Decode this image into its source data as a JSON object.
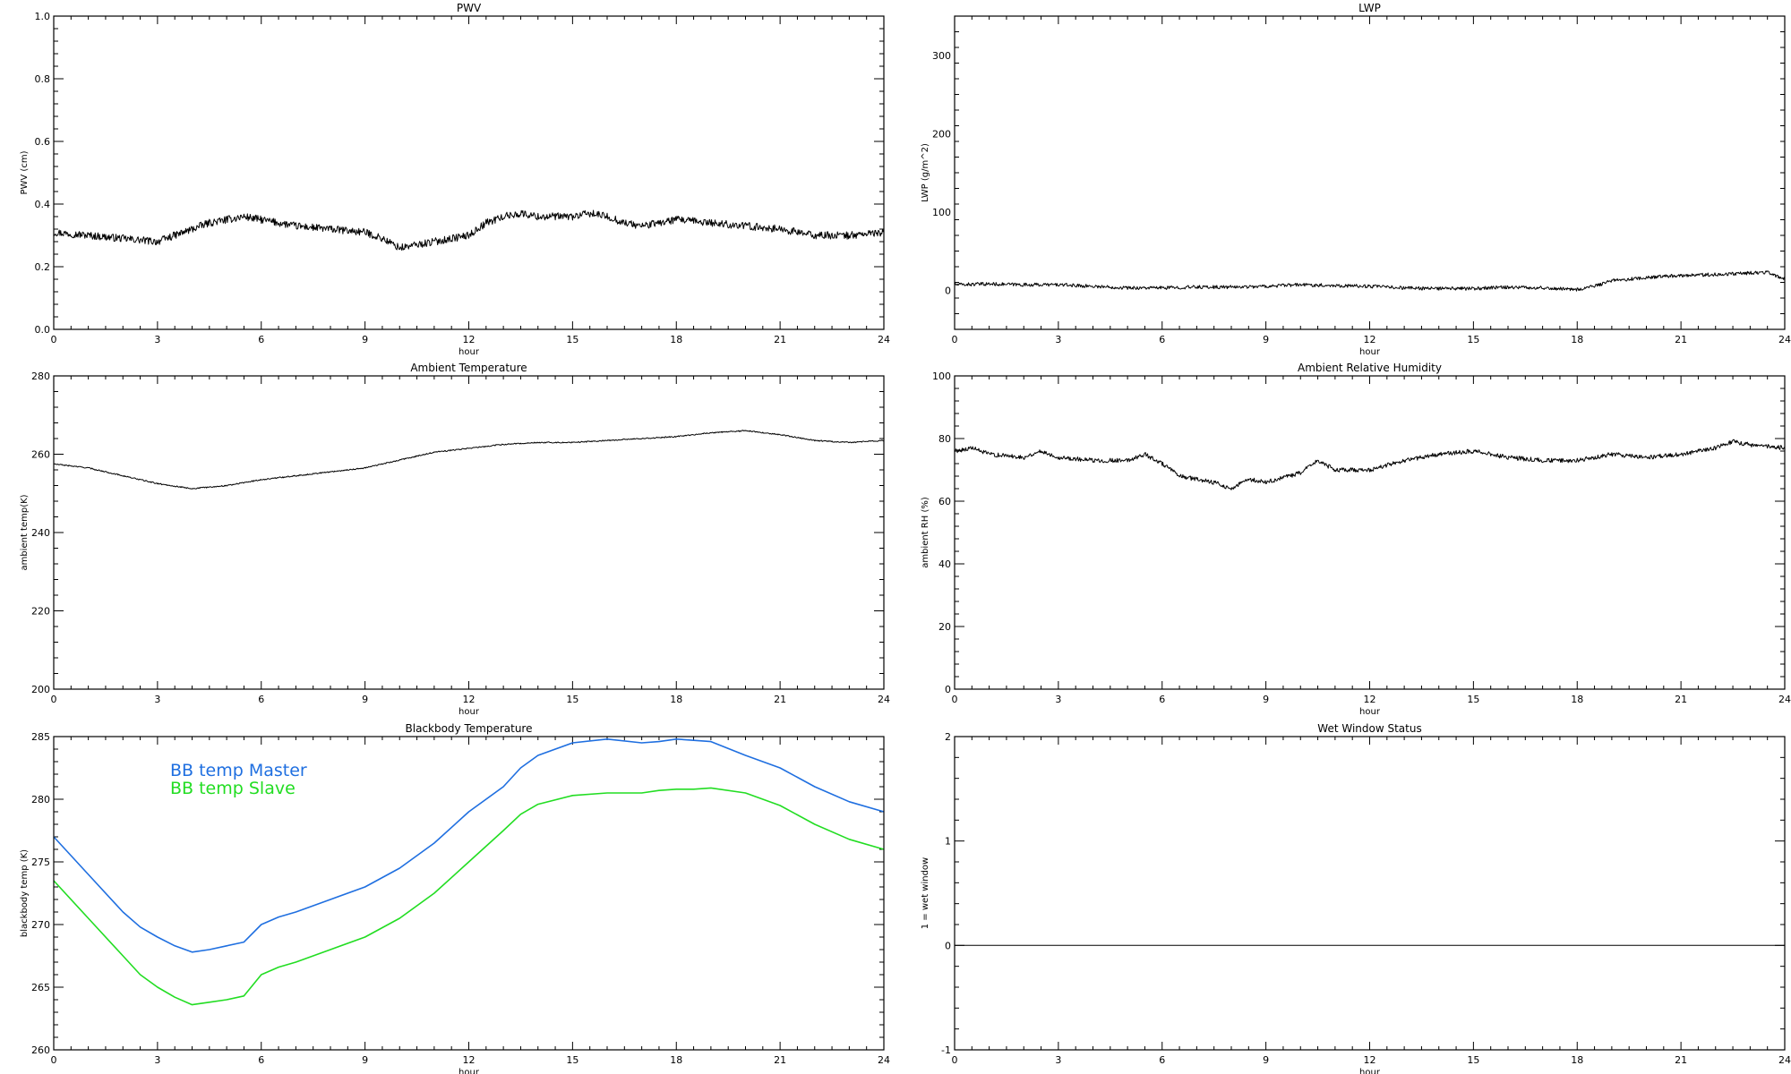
{
  "chart_data": [
    {
      "type": "line",
      "title": "PWV",
      "xlabel": "hour",
      "ylabel": "PWV (cm)",
      "xlim": [
        0,
        24
      ],
      "ylim": [
        0.0,
        1.0
      ],
      "xticks": [
        "0",
        "3",
        "6",
        "9",
        "12",
        "15",
        "18",
        "21",
        "24"
      ],
      "yticks": [
        "0.0",
        "0.2",
        "0.4",
        "0.6",
        "0.8",
        "1.0"
      ],
      "noise": 0.012,
      "series": [
        {
          "color": "#000000",
          "x": [
            0,
            1,
            2,
            3,
            3.5,
            4,
            4.5,
            5,
            5.5,
            6,
            7,
            8,
            9,
            9.5,
            10,
            11,
            12,
            12.5,
            13,
            13.5,
            14,
            15,
            15.5,
            16,
            16.5,
            17,
            18,
            19,
            20,
            21,
            22,
            23,
            24
          ],
          "y": [
            0.31,
            0.3,
            0.29,
            0.28,
            0.3,
            0.32,
            0.34,
            0.35,
            0.36,
            0.35,
            0.33,
            0.32,
            0.31,
            0.29,
            0.26,
            0.28,
            0.3,
            0.34,
            0.36,
            0.37,
            0.36,
            0.36,
            0.37,
            0.36,
            0.34,
            0.33,
            0.35,
            0.34,
            0.33,
            0.32,
            0.3,
            0.3,
            0.31
          ]
        }
      ]
    },
    {
      "type": "line",
      "title": "LWP",
      "xlabel": "hour",
      "ylabel": "LWP (g/m^2)",
      "xlim": [
        0,
        24
      ],
      "ylim": [
        -50,
        350
      ],
      "xticks": [
        "0",
        "3",
        "6",
        "9",
        "12",
        "15",
        "18",
        "21",
        "24"
      ],
      "yticks": [
        "0",
        "100",
        "200",
        "300"
      ],
      "noise": 2.2,
      "series": [
        {
          "color": "#000000",
          "x": [
            0,
            1,
            2,
            3,
            4,
            5,
            6,
            7,
            8,
            9,
            10,
            11,
            12,
            13,
            14,
            15,
            16,
            17,
            18,
            18.5,
            19,
            20,
            21,
            22,
            23,
            23.5,
            24
          ],
          "y": [
            7,
            8,
            7,
            7,
            5,
            3,
            3,
            4,
            4,
            5,
            7,
            6,
            5,
            3,
            2,
            2,
            4,
            3,
            1,
            5,
            12,
            16,
            19,
            20,
            22,
            23,
            14
          ]
        }
      ]
    },
    {
      "type": "line",
      "title": "Ambient Temperature",
      "xlabel": "hour",
      "ylabel": "ambient temp(K)",
      "xlim": [
        0,
        24
      ],
      "ylim": [
        200,
        280
      ],
      "xticks": [
        "0",
        "3",
        "6",
        "9",
        "12",
        "15",
        "18",
        "21",
        "24"
      ],
      "yticks": [
        "200",
        "220",
        "240",
        "260",
        "280"
      ],
      "noise": 0.15,
      "series": [
        {
          "color": "#000000",
          "x": [
            0,
            1,
            2,
            3,
            4,
            5,
            6,
            7,
            8,
            9,
            10,
            11,
            12,
            13,
            14,
            15,
            16,
            17,
            18,
            19,
            20,
            21,
            22,
            23,
            24
          ],
          "y": [
            257.5,
            256.5,
            254.5,
            252.5,
            251.2,
            252,
            253.5,
            254.5,
            255.5,
            256.5,
            258.5,
            260.5,
            261.5,
            262.5,
            263,
            263,
            263.5,
            264,
            264.5,
            265.5,
            266,
            265,
            263.5,
            263,
            263.5
          ]
        }
      ]
    },
    {
      "type": "line",
      "title": "Ambient Relative Humidity",
      "xlabel": "hour",
      "ylabel": "ambient RH (%)",
      "xlim": [
        0,
        24
      ],
      "ylim": [
        0,
        100
      ],
      "xticks": [
        "0",
        "3",
        "6",
        "9",
        "12",
        "15",
        "18",
        "21",
        "24"
      ],
      "yticks": [
        "0",
        "20",
        "40",
        "60",
        "80",
        "100"
      ],
      "noise": 0.7,
      "series": [
        {
          "color": "#000000",
          "x": [
            0,
            0.5,
            1,
            2,
            2.5,
            3,
            4,
            5,
            5.5,
            6,
            6.5,
            7,
            7.5,
            8,
            8.5,
            9,
            10,
            10.5,
            11,
            12,
            13,
            14,
            15,
            16,
            17,
            18,
            19,
            20,
            21,
            22,
            22.5,
            23,
            24
          ],
          "y": [
            76,
            77,
            75,
            74,
            76,
            74,
            73,
            73,
            75,
            72,
            68,
            67,
            66,
            64,
            67,
            66,
            69,
            73,
            70,
            70,
            73,
            75,
            76,
            74,
            73,
            73,
            75,
            74,
            75,
            77,
            79,
            78,
            77
          ]
        }
      ]
    },
    {
      "type": "line",
      "title": "Blackbody Temperature",
      "xlabel": "hour",
      "ylabel": "blackbody temp (K)",
      "xlim": [
        0,
        24
      ],
      "ylim": [
        260,
        285
      ],
      "xticks": [
        "0",
        "3",
        "6",
        "9",
        "12",
        "15",
        "18",
        "21",
        "24"
      ],
      "yticks": [
        "260",
        "265",
        "270",
        "275",
        "280",
        "285"
      ],
      "noise": 0,
      "legend": [
        {
          "label": "BB temp Master",
          "color": "#1f6fe0"
        },
        {
          "label": "BB temp Slave",
          "color": "#22dd22"
        }
      ],
      "series": [
        {
          "name": "BB temp Master",
          "color": "#1f6fe0",
          "x": [
            0,
            1,
            2,
            2.5,
            3,
            3.5,
            4,
            4.5,
            5,
            5.5,
            6,
            6.5,
            7,
            8,
            9,
            10,
            11,
            12,
            13,
            13.5,
            14,
            15,
            16,
            17,
            17.5,
            18,
            18.5,
            19,
            20,
            21,
            22,
            23,
            24
          ],
          "y": [
            277,
            274,
            271,
            269.8,
            269,
            268.3,
            267.8,
            268,
            268.3,
            268.6,
            270,
            270.6,
            271,
            272,
            273,
            274.5,
            276.5,
            279,
            281,
            282.5,
            283.5,
            284.5,
            284.8,
            284.5,
            284.6,
            284.8,
            284.7,
            284.6,
            283.5,
            282.5,
            281,
            279.8,
            279
          ]
        },
        {
          "name": "BB temp Slave",
          "color": "#22dd22",
          "x": [
            0,
            1,
            2,
            2.5,
            3,
            3.5,
            4,
            4.5,
            5,
            5.5,
            6,
            6.5,
            7,
            8,
            9,
            10,
            11,
            12,
            13,
            13.5,
            14,
            15,
            16,
            17,
            17.5,
            18,
            18.5,
            19,
            20,
            21,
            22,
            23,
            24
          ],
          "y": [
            273.5,
            270.5,
            267.5,
            266,
            265,
            264.2,
            263.6,
            263.8,
            264,
            264.3,
            266,
            266.6,
            267,
            268,
            269,
            270.5,
            272.5,
            275,
            277.5,
            278.8,
            279.6,
            280.3,
            280.5,
            280.5,
            280.7,
            280.8,
            280.8,
            280.9,
            280.5,
            279.5,
            278,
            276.8,
            276
          ]
        }
      ]
    },
    {
      "type": "line",
      "title": "Wet Window Status",
      "xlabel": "hour",
      "ylabel": "1 = wet window",
      "xlim": [
        0,
        24
      ],
      "ylim": [
        -1,
        2
      ],
      "xticks": [
        "0",
        "3",
        "6",
        "9",
        "12",
        "15",
        "18",
        "21",
        "24"
      ],
      "yticks": [
        "-1",
        "0",
        "1",
        "2"
      ],
      "noise": 0,
      "series": [
        {
          "color": "#000000",
          "x": [
            0,
            24
          ],
          "y": [
            0,
            0
          ]
        }
      ]
    }
  ]
}
